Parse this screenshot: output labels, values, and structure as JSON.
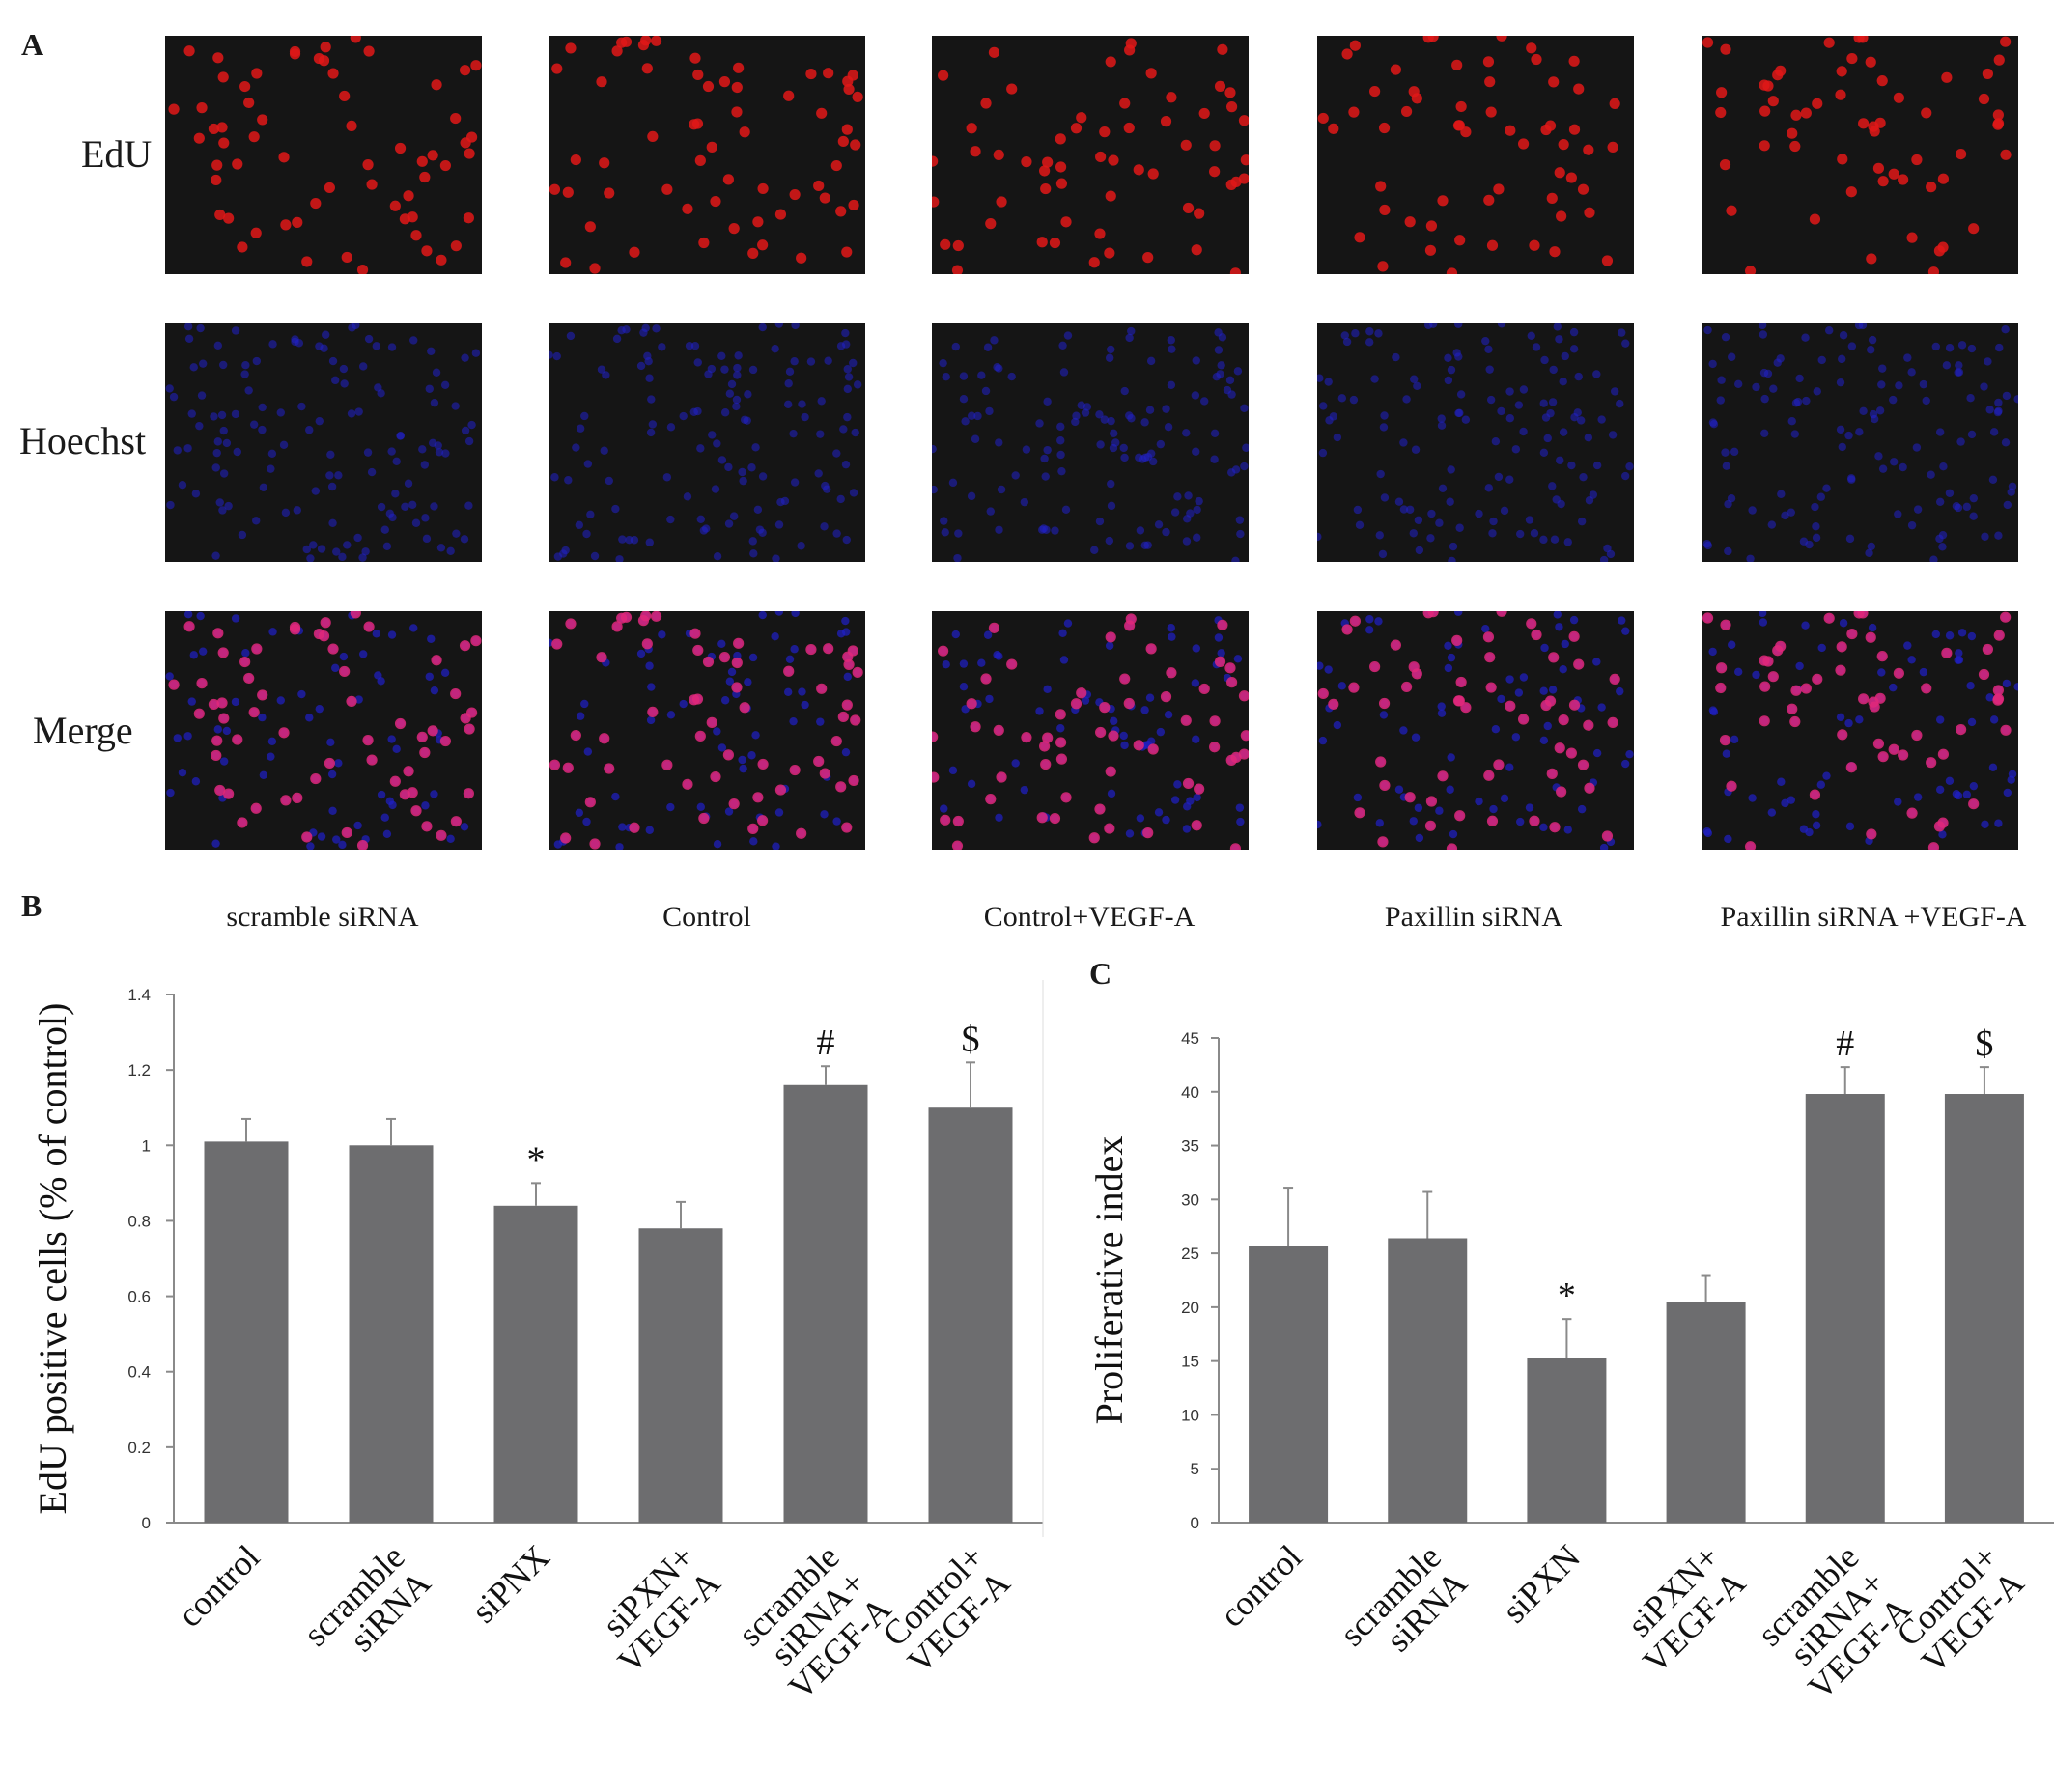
{
  "panel_a": {
    "letter": "A",
    "rows": [
      "EdU",
      "Hoechst",
      "Merge"
    ],
    "columns": [
      "scramble siRNA",
      "Control",
      "Control+VEGF-A",
      "Paxillin siRNA",
      "Paxillin siRNA +VEGF-A"
    ],
    "colors": {
      "edu": "#e01818",
      "hoechst": "#2020c8",
      "background": "#151515"
    }
  },
  "panel_b": {
    "letter": "B"
  },
  "panel_c": {
    "letter": "C"
  },
  "chart_data": [
    {
      "type": "bar",
      "ylabel": "EdU positive cells (% of control)",
      "categories": [
        "control",
        "scramble siRNA",
        "siPNX",
        "siPXN+ VEGF-A",
        "scramble siRNA+ VEGF-A",
        "Control+ VEGF-A"
      ],
      "category_lines": [
        [
          "control"
        ],
        [
          "scramble",
          "siRNA"
        ],
        [
          "siPNX"
        ],
        [
          "siPXN+",
          "VEGF-A"
        ],
        [
          "scramble",
          "siRNA+",
          "VEGF-A"
        ],
        [
          "Control+",
          "VEGF-A"
        ]
      ],
      "values": [
        1.01,
        1.0,
        0.84,
        0.78,
        1.16,
        1.1
      ],
      "errors": [
        0.06,
        0.07,
        0.06,
        0.07,
        0.05,
        0.12
      ],
      "markers": [
        "",
        "",
        "*",
        "",
        "#",
        "$"
      ],
      "yticks": [
        "0",
        "0.2",
        "0.4",
        "0.6",
        "0.8",
        "1",
        "1.2",
        "1.4"
      ],
      "ylim": [
        0,
        1.4
      ],
      "bar_color": "#6d6d6f",
      "grid": false
    },
    {
      "type": "bar",
      "ylabel": "Proliferative index",
      "categories": [
        "control",
        "scramble siRNA",
        "siPXN",
        "siPXN+ VEGF-A",
        "scramble siRNA+ VEGF-A",
        "Control+ VEGF-A"
      ],
      "category_lines": [
        [
          "control"
        ],
        [
          "scramble",
          "siRNA"
        ],
        [
          "siPXN"
        ],
        [
          "siPXN+",
          "VEGF-A"
        ],
        [
          "scramble",
          "siRNA+",
          "VEGF-A"
        ],
        [
          "Control+",
          "VEGF-A"
        ]
      ],
      "values": [
        25.7,
        26.4,
        15.3,
        20.5,
        39.8,
        39.8
      ],
      "errors": [
        5.4,
        4.3,
        3.6,
        2.4,
        2.5,
        2.5
      ],
      "markers": [
        "",
        "",
        "*",
        "",
        "#",
        "$"
      ],
      "yticks": [
        "0",
        "5",
        "10",
        "15",
        "20",
        "25",
        "30",
        "35",
        "40",
        "45"
      ],
      "ylim": [
        0,
        45
      ],
      "bar_color": "#6d6d6f",
      "grid": false
    }
  ]
}
